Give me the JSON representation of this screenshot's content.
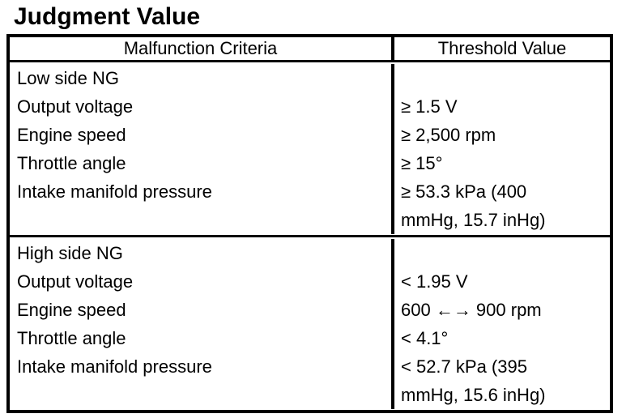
{
  "page": {
    "title": "Judgment Value"
  },
  "colors": {
    "text": "#000000",
    "border": "#000000",
    "background": "#ffffff"
  },
  "table": {
    "headers": {
      "criteria": "Malfunction Criteria",
      "value": "Threshold Value"
    },
    "sections": [
      {
        "name": "Low side NG",
        "rows": [
          {
            "criteria": "Low side NG",
            "value": ""
          },
          {
            "criteria": "Output voltage",
            "value": "≥ 1.5 V"
          },
          {
            "criteria": "Engine speed",
            "value": "≥ 2,500 rpm"
          },
          {
            "criteria": "Throttle angle",
            "value": "≥ 15°"
          },
          {
            "criteria": "Intake manifold pressure",
            "value": "≥ 53.3 kPa (400 mmHg, 15.7 inHg)"
          }
        ]
      },
      {
        "name": "High side NG",
        "rows": [
          {
            "criteria": "High side NG",
            "value": ""
          },
          {
            "criteria": "Output voltage",
            "value": "< 1.95 V"
          },
          {
            "criteria": "Engine speed",
            "value": "600 ←→ 900 rpm"
          },
          {
            "criteria": "Throttle angle",
            "value": "< 4.1°"
          },
          {
            "criteria": "Intake manifold pressure",
            "value": "< 52.7 kPa (395 mmHg, 15.6 inHg)"
          }
        ]
      }
    ]
  }
}
